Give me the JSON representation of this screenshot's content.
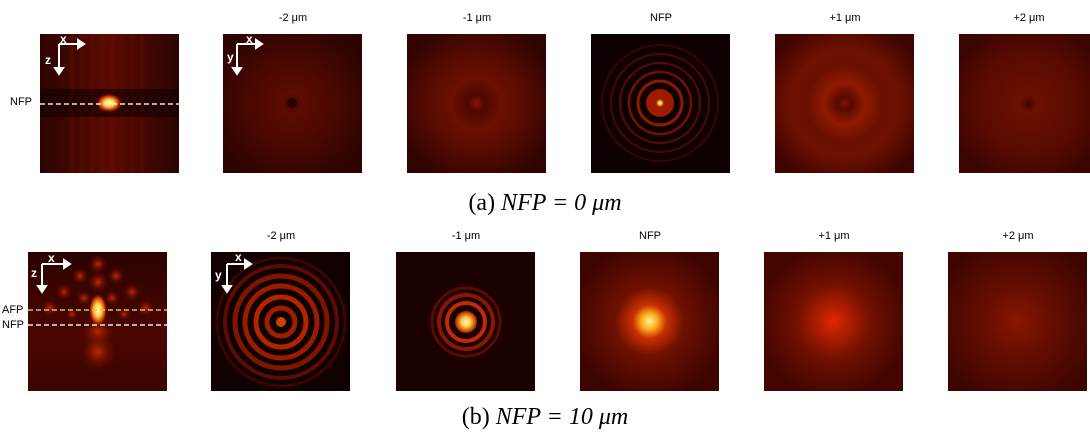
{
  "row_a": {
    "caption_prefix": "(a)",
    "caption_eq": "NFP = 0 μm",
    "side_label": "NFP",
    "axes_xz": {
      "h": "x",
      "v": "z"
    },
    "axes_xy": {
      "h": "x",
      "v": "y"
    },
    "labels": [
      "-2 μm",
      "-1 μm",
      "NFP",
      "+1 μm",
      "+2 μm"
    ]
  },
  "row_b": {
    "caption_prefix": "(b)",
    "caption_eq": "NFP = 10 μm",
    "side_labels": [
      "AFP",
      "NFP"
    ],
    "axes_xz": {
      "h": "x",
      "v": "z"
    },
    "axes_xy": {
      "h": "x",
      "v": "y"
    },
    "labels": [
      "-2 μm",
      "-1 μm",
      "NFP",
      "+1 μm",
      "+2 μm"
    ]
  },
  "colors": {
    "afp_line": "#d8c24a",
    "nfp_line": "#e8e8e8",
    "hot": "#ffe86a",
    "dark": "#2a0000"
  }
}
